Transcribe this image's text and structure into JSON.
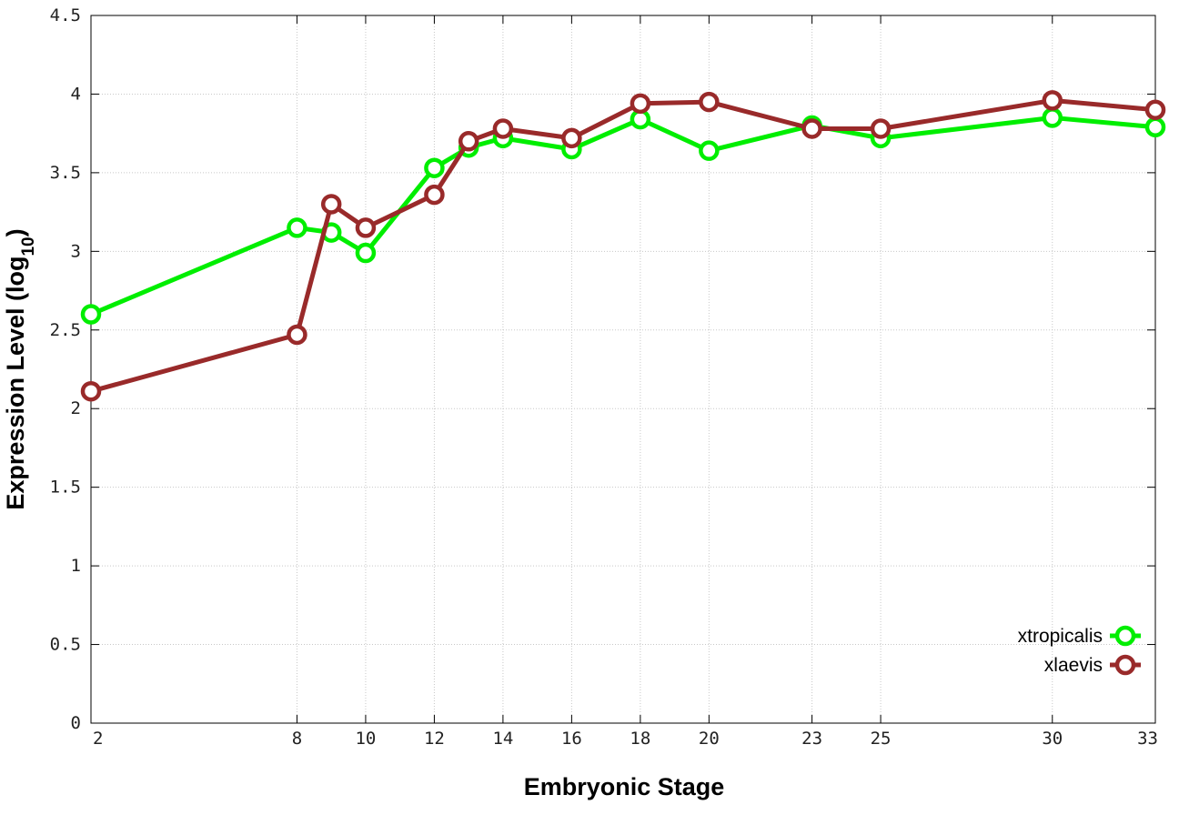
{
  "chart_data": {
    "type": "line",
    "xlabel": "Embryonic Stage",
    "ylabel": "Expression Level (log",
    "ylabel_sub": "10",
    "ylabel_close": ")",
    "xlim": [
      2,
      33
    ],
    "ylim": [
      0,
      4.5
    ],
    "x_ticks": [
      2,
      8,
      10,
      12,
      14,
      16,
      18,
      20,
      23,
      25,
      30,
      33
    ],
    "y_ticks": [
      0,
      0.5,
      1,
      1.5,
      2,
      2.5,
      3,
      3.5,
      4,
      4.5
    ],
    "y_tick_labels": [
      "0",
      "0.5",
      "1",
      "1.5",
      "2",
      "2.5",
      "3",
      "3.5",
      "4",
      "4.5"
    ],
    "grid": true,
    "legend_position": "bottom-right",
    "x": [
      2,
      8,
      9,
      10,
      12,
      13,
      14,
      16,
      18,
      20,
      23,
      25,
      30,
      33
    ],
    "series": [
      {
        "name": "xtropicalis",
        "color": "#00ee00",
        "values": [
          2.6,
          3.15,
          3.12,
          2.99,
          3.53,
          3.66,
          3.72,
          3.65,
          3.84,
          3.64,
          3.8,
          3.72,
          3.85,
          3.79
        ]
      },
      {
        "name": "xlaevis",
        "color": "#992a2a",
        "values": [
          2.11,
          2.47,
          3.3,
          3.15,
          3.36,
          3.7,
          3.78,
          3.72,
          3.94,
          3.95,
          3.78,
          3.78,
          3.96,
          3.9
        ]
      }
    ]
  }
}
